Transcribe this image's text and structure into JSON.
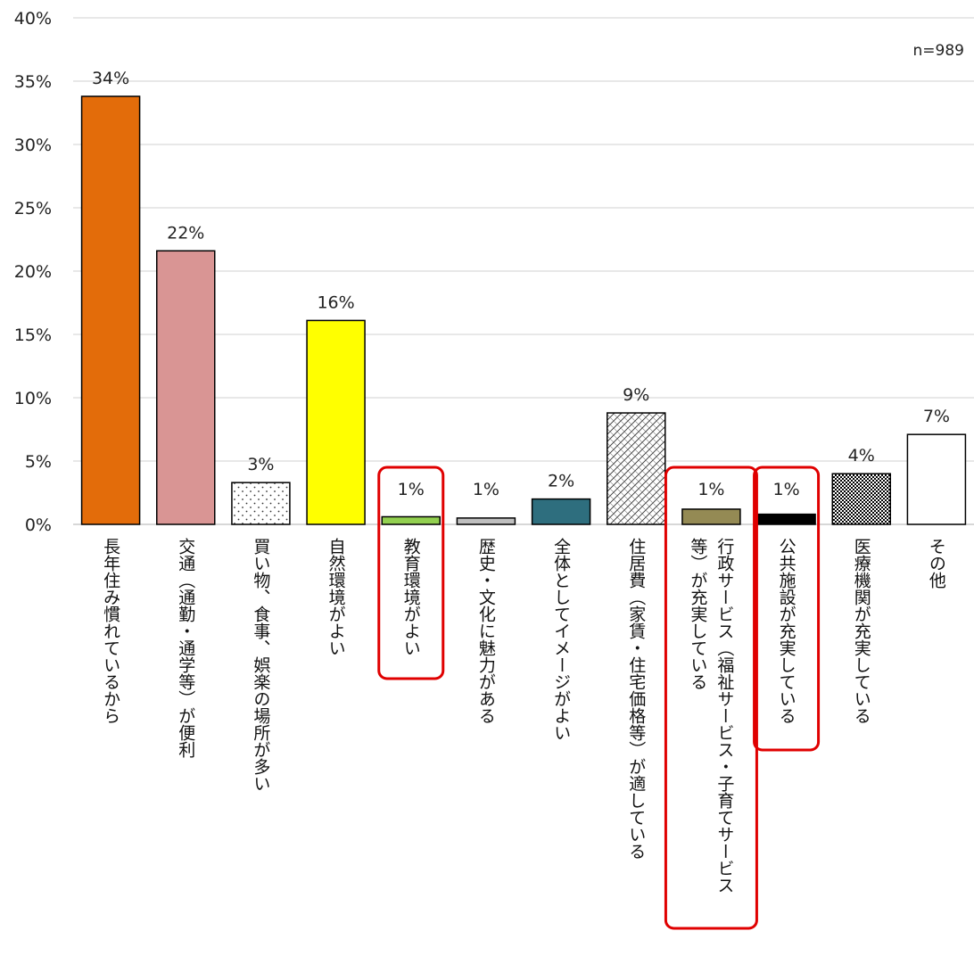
{
  "note": "n=989",
  "chart_data": {
    "type": "bar",
    "ylim": [
      0,
      40
    ],
    "yticks": [
      "0%",
      "5%",
      "10%",
      "15%",
      "20%",
      "25%",
      "30%",
      "35%",
      "40%"
    ],
    "grid": true,
    "categories": [
      "長年住み慣れているから",
      "交通（通勤・通学等）が便利",
      "買い物、食事、娯楽の場所が多い",
      "自然環境がよい",
      "教育環境がよい",
      "歴史・文化に魅力がある",
      "全体としてイメージがよい",
      "住居費（家賃・住宅価格等）が適している",
      "行政サービス（福祉サービス・子育てサービス等）が充実している",
      "公共施設が充実している",
      "医療機関が充実している",
      "その他"
    ],
    "category_lines": [
      [
        "長年住み慣れているから"
      ],
      [
        "交通（通勤・通学等）が便利"
      ],
      [
        "買い物、食事、娯楽の場所が多い"
      ],
      [
        "自然環境がよい"
      ],
      [
        "教育環境がよい"
      ],
      [
        "歴史・文化に魅力がある"
      ],
      [
        "全体としてイメージがよい"
      ],
      [
        "住居費（家賃・住宅価格等）が適している"
      ],
      [
        "行政サービス（福祉サービス・子育てサービス",
        "等）が充実している"
      ],
      [
        "公共施設が充実している"
      ],
      [
        "医療機関が充実している"
      ],
      [
        "その他"
      ]
    ],
    "values": [
      33.8,
      21.6,
      3.3,
      16.1,
      0.6,
      0.5,
      2.0,
      8.8,
      1.2,
      0.8,
      4.0,
      7.1
    ],
    "labels": [
      "34%",
      "22%",
      "3%",
      "16%",
      "1%",
      "1%",
      "2%",
      "9%",
      "1%",
      "1%",
      "4%",
      "7%"
    ],
    "fills": [
      "#E36C0A",
      "#D99594",
      "dots",
      "#FFFF00",
      "#92D050",
      "#BFBFBF",
      "#2E6E7E",
      "diag",
      "#948A54",
      "#000000",
      "checker",
      "#FFFFFF"
    ],
    "highlighted": [
      "教育環境がよい",
      "行政サービス（福祉サービス・子育てサービス等）が充実している",
      "公共施設が充実している"
    ],
    "highlight_color": "#E00000"
  }
}
